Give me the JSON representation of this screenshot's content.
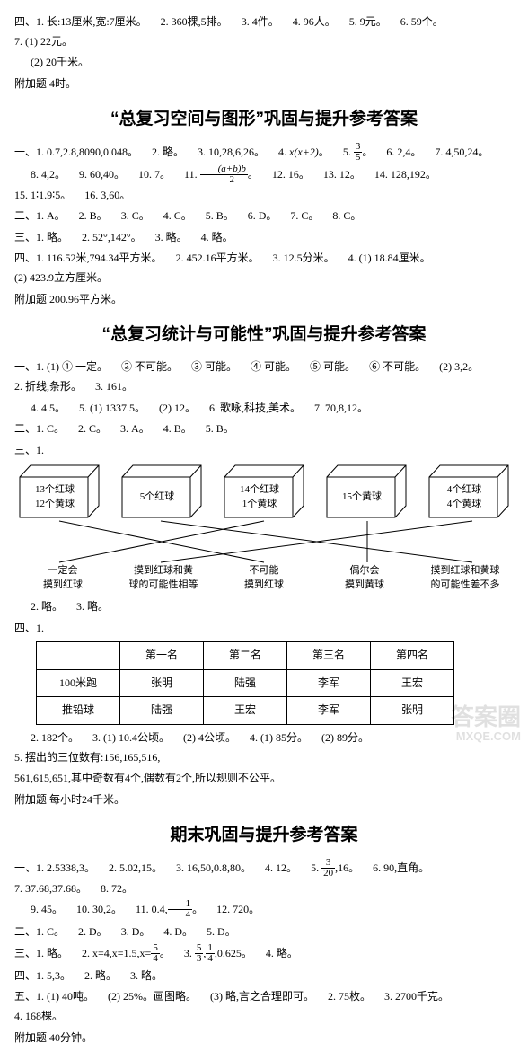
{
  "top": {
    "line1": [
      "四、1. 长:13厘米,宽:7厘米。",
      "2. 360棵,5排。",
      "3. 4件。",
      "4. 96人。",
      "5. 9元。",
      "6. 59个。",
      "7. (1) 22元。"
    ],
    "line2": "(2) 20千米。",
    "line3": "附加题  4时。"
  },
  "sec1": {
    "title": "“总复习空间与图形”巩固与提升参考答案",
    "row1": {
      "prefix": "一、1. 0.7,2.8,8090,0.048。",
      "items": [
        "2. 略。",
        "3. 10,28,6,26。",
        "4.",
        "。",
        "5. ",
        "。",
        "6. 2,4。",
        "7. 4,50,24。"
      ],
      "expr1": "x(x+2)",
      "frac_num": "3",
      "frac_den": "5"
    },
    "row2": {
      "items": [
        "8. 4,2。",
        "9. 60,40。",
        "10. 7。",
        "11.",
        "。",
        "12. 16。",
        "13. 12。",
        "14. 128,192。",
        "15. 1∶1.9∶5。",
        "16. 3,60。"
      ],
      "frac_num": "(a+b)b",
      "frac_den": "2"
    },
    "row3": [
      "二、1. A。",
      "2. B。",
      "3. C。",
      "4. C。",
      "5. B。",
      "6. D。",
      "7. C。",
      "8. C。"
    ],
    "row4": [
      "三、1. 略。",
      "2. 52°,142°。",
      "3. 略。",
      "4. 略。"
    ],
    "row5": [
      "四、1. 116.52米,794.34平方米。",
      "2. 452.16平方米。",
      "3. 12.5分米。",
      "4. (1) 18.84厘米。",
      "(2) 423.9立方厘米。"
    ],
    "row6": "附加题  200.96平方米。"
  },
  "sec2": {
    "title": "“总复习统计与可能性”巩固与提升参考答案",
    "row1": [
      "一、1. (1) ① 一定。",
      "② 不可能。",
      "③ 可能。",
      "④ 可能。",
      "⑤ 可能。",
      "⑥ 不可能。",
      "(2) 3,2。",
      "2. 折线,条形。",
      "3. 161。"
    ],
    "row2": [
      "4. 4.5。",
      "5. (1) 1337.5。",
      "(2) 12。",
      "6. 歌咏,科技,美术。",
      "7. 70,8,12。"
    ],
    "row3": [
      "二、1. C。",
      "2. C。",
      "3. A。",
      "4. B。",
      "5. B。"
    ],
    "row4_prefix": "三、1.",
    "boxes": [
      {
        "l1": "13个红球",
        "l2": "12个黄球"
      },
      {
        "l1": "5个红球",
        "l2": ""
      },
      {
        "l1": "14个红球",
        "l2": "1个黄球"
      },
      {
        "l1": "15个黄球",
        "l2": ""
      },
      {
        "l1": "4个红球",
        "l2": "4个黄球"
      }
    ],
    "box_fill": "#ffffff",
    "box_stroke": "#000000",
    "lines": [
      {
        "from": 0,
        "to": 2
      },
      {
        "from": 1,
        "to": 4
      },
      {
        "from": 2,
        "to": 0
      },
      {
        "from": 3,
        "to": 3
      },
      {
        "from": 4,
        "to": 1
      }
    ],
    "labels": [
      {
        "l1": "一定会",
        "l2": "摸到红球"
      },
      {
        "l1": "摸到红球和黄",
        "l2": "球的可能性相等"
      },
      {
        "l1": "不可能",
        "l2": "摸到红球"
      },
      {
        "l1": "偶尔会",
        "l2": "摸到黄球"
      },
      {
        "l1": "摸到红球和黄球",
        "l2": "的可能性差不多"
      }
    ],
    "row5": [
      "2. 略。",
      "3. 略。"
    ],
    "row6_prefix": "四、1.",
    "table": {
      "cols": [
        "",
        "第一名",
        "第二名",
        "第三名",
        "第四名"
      ],
      "rows": [
        [
          "100米跑",
          "张明",
          "陆强",
          "李军",
          "王宏"
        ],
        [
          "推铅球",
          "陆强",
          "王宏",
          "李军",
          "张明"
        ]
      ]
    },
    "row7": [
      "2. 182个。",
      "3. (1) 10.4公顷。",
      "(2) 4公顷。",
      "4. (1) 85分。",
      "(2) 89分。",
      "5. 摆出的三位数有:156,165,516,"
    ],
    "row7b": "561,615,651,其中奇数有4个,偶数有2个,所以规则不公平。",
    "row8": "附加题  每小时24千米。"
  },
  "sec3": {
    "title": "期末巩固与提升参考答案",
    "row1": {
      "items": [
        "一、1. 2.5338,3。",
        "2. 5.02,15。",
        "3. 16,50,0.8,80。",
        "4. 12。",
        "5.",
        ",16。",
        "6. 90,直角。",
        "7. 37.68,37.68。",
        "8. 72。"
      ],
      "frac_num": "3",
      "frac_den": "20"
    },
    "row2": {
      "items": [
        "9. 45。",
        "10. 30,2。",
        "11. 0.4,",
        "。",
        "12. 720。"
      ],
      "frac_num": "1",
      "frac_den": "4"
    },
    "row3": [
      "二、1. C。",
      "2. D。",
      "3. D。",
      "4. D。",
      "5. D。"
    ],
    "row4": {
      "items": [
        "三、1. 略。",
        "2. x=4,x=1.5,x=",
        "。",
        "3.",
        ",",
        ",0.625。",
        "4. 略。"
      ],
      "f1n": "5",
      "f1d": "4",
      "f2n": "5",
      "f2d": "3",
      "f3n": "1",
      "f3d": "4"
    },
    "row5": [
      "四、1. 5,3。",
      "2. 略。",
      "3. 略。"
    ],
    "row6": [
      "五、1. (1) 40吨。",
      "(2) 25%。画图略。",
      "(3) 略,言之合理即可。",
      "2. 75枚。",
      "3. 2700千克。",
      "4. 168棵。"
    ],
    "row7": "附加题  40分钟。"
  },
  "wm": {
    "l1": "答案圈",
    "l2": "MXQE.COM"
  }
}
